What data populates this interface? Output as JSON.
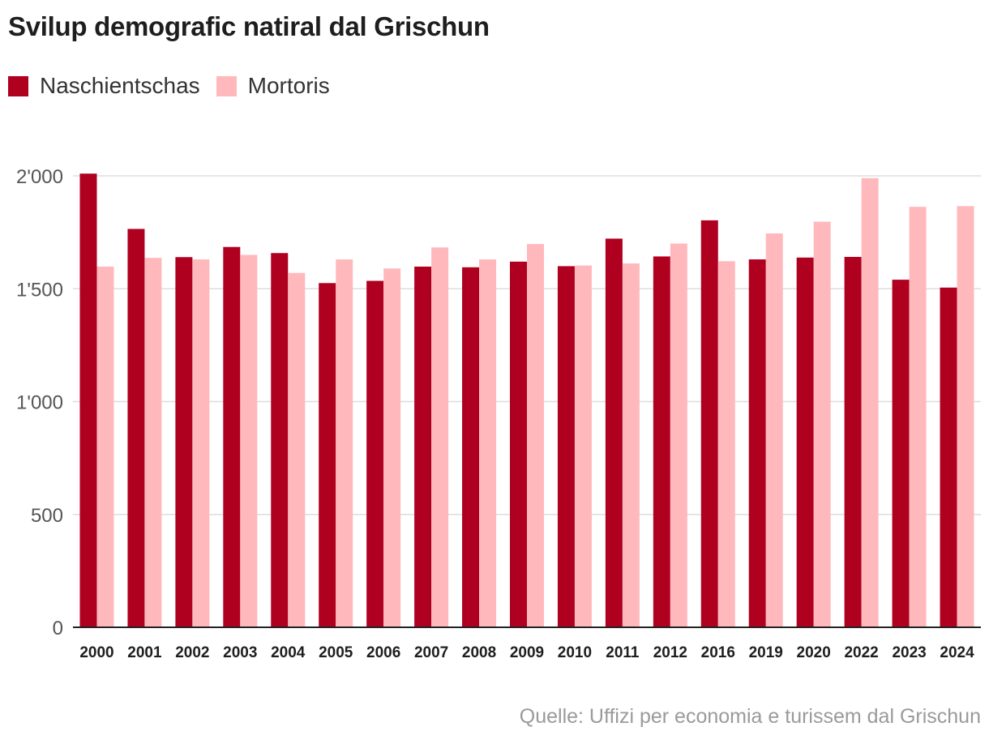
{
  "chart_data": {
    "type": "bar",
    "title": "Svilup demografic natiral dal Grischun",
    "categories": [
      "2000",
      "2001",
      "2002",
      "2003",
      "2004",
      "2005",
      "2006",
      "2007",
      "2008",
      "2009",
      "2010",
      "2011",
      "2012",
      "2016",
      "2019",
      "2020",
      "2022",
      "2023",
      "2024"
    ],
    "series": [
      {
        "name": "Naschientschas",
        "color": "#b00020",
        "values": [
          2010,
          1765,
          1640,
          1685,
          1658,
          1525,
          1535,
          1598,
          1595,
          1620,
          1600,
          1722,
          1643,
          1803,
          1630,
          1638,
          1641,
          1540,
          1505
        ]
      },
      {
        "name": "Mortoris",
        "color": "#ffb9bd",
        "values": [
          1598,
          1637,
          1630,
          1650,
          1570,
          1630,
          1590,
          1683,
          1630,
          1698,
          1603,
          1612,
          1700,
          1622,
          1745,
          1797,
          1990,
          1863,
          1866
        ]
      }
    ],
    "ylim": [
      0,
      2000
    ],
    "yticks": [
      0,
      500,
      1000,
      1500,
      2000
    ],
    "ytick_labels": [
      "0",
      "500",
      "1'000",
      "1'500",
      "2'000"
    ],
    "xlabel": "",
    "ylabel": "",
    "grid": true,
    "legend_position": "top-left"
  },
  "source": "Quelle: Uffizi per economia e turissem dal Grischun"
}
